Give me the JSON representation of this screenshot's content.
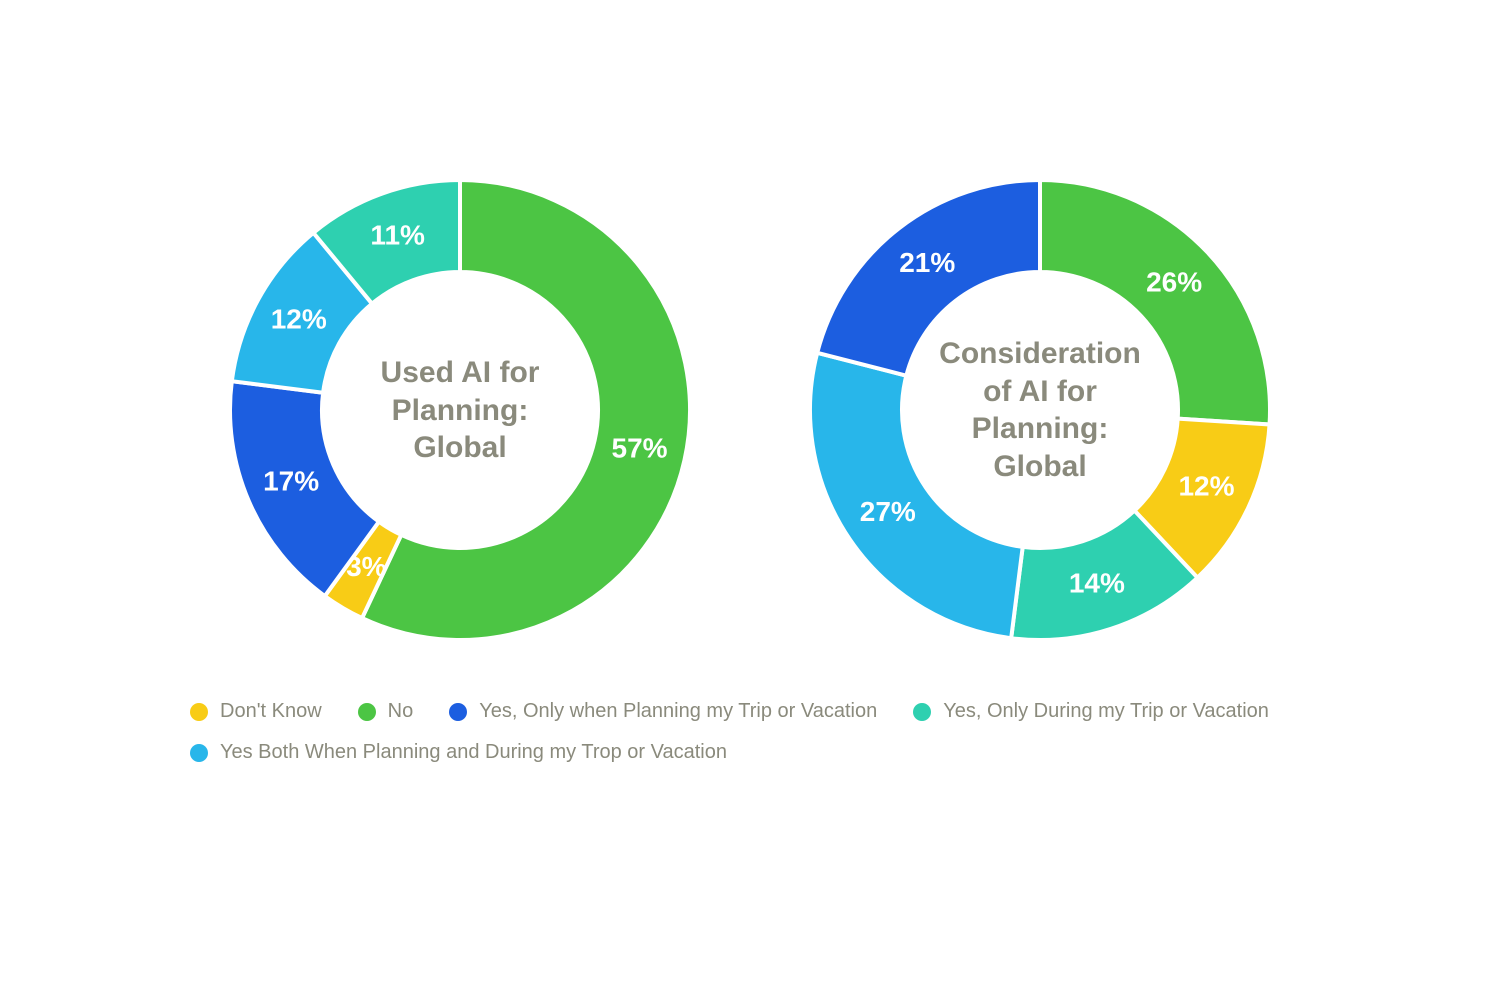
{
  "background_color": "#ffffff",
  "text_color": "#8a8a7c",
  "categories": [
    {
      "key": "dont_know",
      "label": "Don't Know",
      "color": "#f8cc16"
    },
    {
      "key": "no",
      "label": "No",
      "color": "#4cc544"
    },
    {
      "key": "yes_plan",
      "label": "Yes, Only when Planning my Trip or Vacation",
      "color": "#1c5ee0"
    },
    {
      "key": "yes_during",
      "label": "Yes, Only During my Trip or Vacation",
      "color": "#2ed0b0"
    },
    {
      "key": "yes_both",
      "label": "Yes Both When Planning and During my Trop or Vacation",
      "color": "#28b6ea"
    }
  ],
  "donut": {
    "outer_radius": 230,
    "inner_radius": 138,
    "gap_color": "#ffffff",
    "gap_width": 4,
    "start_angle_deg": 0,
    "label_color": "#ffffff",
    "label_fontsize": 28,
    "label_fontweight": "700",
    "label_radius": 184,
    "center_fontsize": 30,
    "center_fontweight": "600",
    "center_color": "#8a8a7c"
  },
  "charts": [
    {
      "id": "chart-used",
      "title": "Used AI for\nPlanning:\nGlobal",
      "start_angle_deg": 0,
      "slices": [
        {
          "key": "no",
          "value": 57,
          "label": "57%"
        },
        {
          "key": "dont_know",
          "value": 3,
          "label": "3%"
        },
        {
          "key": "yes_plan",
          "value": 17,
          "label": "17%"
        },
        {
          "key": "yes_both",
          "value": 12,
          "label": "12%"
        },
        {
          "key": "yes_during",
          "value": 11,
          "label": "11%"
        }
      ]
    },
    {
      "id": "chart-consider",
      "title": "Consideration\nof AI for\nPlanning:\nGlobal",
      "start_angle_deg": 0,
      "slices": [
        {
          "key": "no",
          "value": 26,
          "label": "26%"
        },
        {
          "key": "dont_know",
          "value": 12,
          "label": "12%"
        },
        {
          "key": "yes_during",
          "value": 14,
          "label": "14%"
        },
        {
          "key": "yes_both",
          "value": 27,
          "label": "27%"
        },
        {
          "key": "yes_plan",
          "value": 21,
          "label": "21%"
        }
      ]
    }
  ],
  "legend": {
    "fontsize": 20,
    "fontweight": "500",
    "color": "#8a8a7c",
    "swatch_diameter": 18,
    "order": [
      "dont_know",
      "no",
      "yes_plan",
      "yes_during",
      "yes_both"
    ]
  }
}
